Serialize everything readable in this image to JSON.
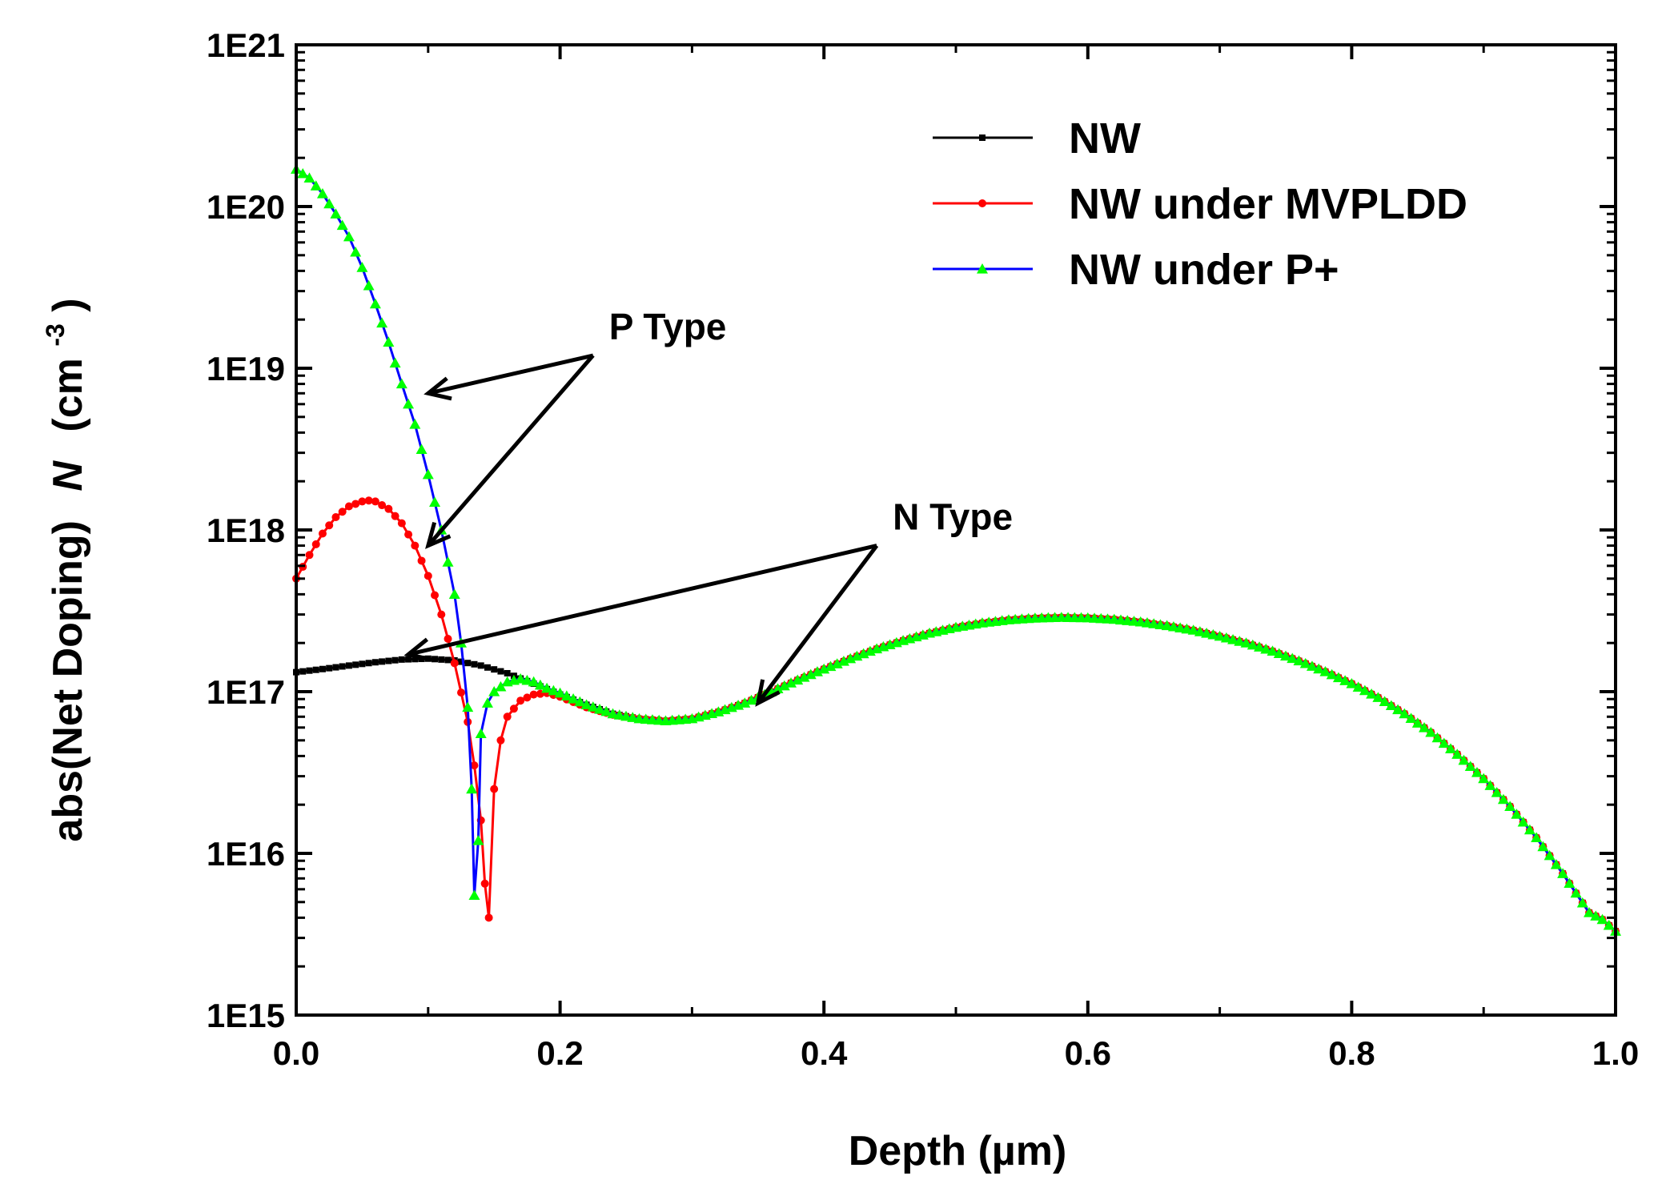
{
  "chart_data": {
    "type": "line",
    "title": "",
    "xlabel": "Depth (µm)",
    "ylabel": {
      "prefix": "abs(Net Doping)",
      "symbol": "N",
      "unit_open": "(cm",
      "unit_sup": "-3",
      "unit_close": ")"
    },
    "xlim": [
      0.0,
      1.0
    ],
    "ylim": [
      1000000000000000.0,
      1e+21
    ],
    "yscale": "log",
    "grid": false,
    "legend_position": "top-right",
    "xticks": [
      "0.0",
      "0.2",
      "0.4",
      "0.6",
      "0.8",
      "1.0"
    ],
    "yticks": [
      "1E15",
      "1E16",
      "1E17",
      "1E18",
      "1E19",
      "1E20",
      "1E21"
    ],
    "series": [
      {
        "name": "NW",
        "color": "#000000",
        "marker": "square",
        "x": [
          0.0,
          0.02,
          0.04,
          0.06,
          0.08,
          0.1,
          0.12,
          0.14,
          0.16,
          0.18,
          0.2,
          0.22,
          0.24,
          0.26,
          0.28,
          0.3,
          0.32,
          0.34,
          0.36,
          0.38,
          0.4,
          0.42,
          0.44,
          0.46,
          0.48,
          0.5,
          0.52,
          0.54,
          0.56,
          0.58,
          0.6,
          0.62,
          0.64,
          0.66,
          0.68,
          0.7,
          0.72,
          0.74,
          0.76,
          0.78,
          0.8,
          0.82,
          0.84,
          0.86,
          0.88,
          0.9,
          0.92,
          0.94,
          0.96,
          0.98,
          0.99,
          1.0
        ],
        "y": [
          1.32e+17,
          1.38e+17,
          1.45e+17,
          1.52e+17,
          1.58e+17,
          1.6e+17,
          1.56e+17,
          1.45e+17,
          1.3e+17,
          1.12e+17,
          9.6e+16,
          8.3e+16,
          7.3e+16,
          6.8e+16,
          6.6e+16,
          6.8e+16,
          7.5e+16,
          8.5e+16,
          1e+17,
          1.18e+17,
          1.38e+17,
          1.6e+17,
          1.84e+17,
          2.07e+17,
          2.3e+17,
          2.5e+17,
          2.66e+17,
          2.78e+17,
          2.85e+17,
          2.88e+17,
          2.86e+17,
          2.8e+17,
          2.7e+17,
          2.56e+17,
          2.4e+17,
          2.2e+17,
          2e+17,
          1.78e+17,
          1.55e+17,
          1.33e+17,
          1.12e+17,
          9.2e+16,
          7.3e+16,
          5.6e+16,
          4.1e+16,
          2.9e+16,
          1.95e+16,
          1.25e+16,
          7500000000000000.0,
          4300000000000000.0,
          3900000000000000.0,
          3300000000000000.0
        ]
      },
      {
        "name": "NW under MVPLDD",
        "color": "#ff0000",
        "marker": "circle",
        "x": [
          0.0,
          0.01,
          0.02,
          0.03,
          0.04,
          0.05,
          0.055,
          0.06,
          0.07,
          0.08,
          0.09,
          0.1,
          0.11,
          0.12,
          0.13,
          0.135,
          0.14,
          0.143,
          0.146,
          0.15,
          0.155,
          0.16,
          0.17,
          0.18,
          0.19,
          0.2,
          0.22,
          0.24,
          0.26,
          0.28,
          0.3,
          0.32,
          0.34,
          0.36,
          0.38,
          0.4,
          0.42,
          0.44,
          0.46,
          0.48,
          0.5,
          0.52,
          0.54,
          0.56,
          0.58,
          0.6,
          0.62,
          0.64,
          0.66,
          0.68,
          0.7,
          0.72,
          0.74,
          0.76,
          0.78,
          0.8,
          0.82,
          0.84,
          0.86,
          0.88,
          0.9,
          0.92,
          0.94,
          0.96,
          0.98,
          0.99,
          1.0
        ],
        "y": [
          5e+17,
          7e+17,
          9.5e+17,
          1.2e+18,
          1.4e+18,
          1.5e+18,
          1.52e+18,
          1.5e+18,
          1.35e+18,
          1.1e+18,
          8e+17,
          5.2e+17,
          3e+17,
          1.5e+17,
          6.5e+16,
          3.5e+16,
          1.6e+16,
          6500000000000000.0,
          4000000000000000.0,
          2.5e+16,
          5e+16,
          7e+16,
          8.8e+16,
          9.6e+16,
          9.8e+16,
          9.3e+16,
          8e+16,
          7.2e+16,
          6.8e+16,
          6.6e+16,
          6.8e+16,
          7.5e+16,
          8.5e+16,
          1e+17,
          1.18e+17,
          1.38e+17,
          1.6e+17,
          1.84e+17,
          2.07e+17,
          2.3e+17,
          2.5e+17,
          2.66e+17,
          2.78e+17,
          2.85e+17,
          2.88e+17,
          2.86e+17,
          2.8e+17,
          2.7e+17,
          2.56e+17,
          2.4e+17,
          2.2e+17,
          2e+17,
          1.78e+17,
          1.55e+17,
          1.33e+17,
          1.12e+17,
          9.2e+16,
          7.3e+16,
          5.6e+16,
          4.1e+16,
          2.9e+16,
          1.95e+16,
          1.25e+16,
          7500000000000000.0,
          4300000000000000.0,
          3900000000000000.0,
          3300000000000000.0
        ]
      },
      {
        "name": "NW under P+",
        "color": "#00ff00",
        "line_color": "#0000ff",
        "marker": "triangle",
        "x": [
          0.0,
          0.01,
          0.02,
          0.03,
          0.04,
          0.05,
          0.06,
          0.07,
          0.08,
          0.09,
          0.1,
          0.11,
          0.12,
          0.125,
          0.13,
          0.133,
          0.135,
          0.138,
          0.14,
          0.145,
          0.15,
          0.16,
          0.17,
          0.18,
          0.19,
          0.2,
          0.22,
          0.24,
          0.26,
          0.28,
          0.3,
          0.32,
          0.34,
          0.36,
          0.38,
          0.4,
          0.42,
          0.44,
          0.46,
          0.48,
          0.5,
          0.52,
          0.54,
          0.56,
          0.58,
          0.6,
          0.62,
          0.64,
          0.66,
          0.68,
          0.7,
          0.72,
          0.74,
          0.76,
          0.78,
          0.8,
          0.82,
          0.84,
          0.86,
          0.88,
          0.9,
          0.92,
          0.94,
          0.96,
          0.98,
          0.99,
          1.0
        ],
        "y": [
          1.7e+20,
          1.5e+20,
          1.2e+20,
          9e+19,
          6.5e+19,
          4.2e+19,
          2.5e+19,
          1.45e+19,
          8e+18,
          4.5e+18,
          2.2e+18,
          1e+18,
          4e+17,
          2e+17,
          8e+16,
          2.5e+16,
          5500000000000000.0,
          1.2e+16,
          5.5e+16,
          8.5e+16,
          1e+17,
          1.15e+17,
          1.2e+17,
          1.15e+17,
          1.05e+17,
          9.8e+16,
          8.3e+16,
          7.3e+16,
          6.8e+16,
          6.6e+16,
          6.8e+16,
          7.5e+16,
          8.5e+16,
          1e+17,
          1.18e+17,
          1.38e+17,
          1.6e+17,
          1.84e+17,
          2.07e+17,
          2.3e+17,
          2.5e+17,
          2.66e+17,
          2.78e+17,
          2.85e+17,
          2.88e+17,
          2.86e+17,
          2.8e+17,
          2.7e+17,
          2.56e+17,
          2.4e+17,
          2.2e+17,
          2e+17,
          1.78e+17,
          1.55e+17,
          1.33e+17,
          1.12e+17,
          9.2e+16,
          7.3e+16,
          5.6e+16,
          4.1e+16,
          2.9e+16,
          1.95e+16,
          1.25e+16,
          7500000000000000.0,
          4300000000000000.0,
          3900000000000000.0,
          3300000000000000.0
        ]
      }
    ],
    "annotations": [
      {
        "text": "P Type",
        "anchor": [
          0.225,
          1.2e+19
        ],
        "arrows_to": [
          [
            0.1,
            7e+18
          ],
          [
            0.1,
            8e+17
          ]
        ]
      },
      {
        "text": "N Type",
        "anchor": [
          0.44,
          8e+17
        ],
        "arrows_to": [
          [
            0.085,
            1.7e+17
          ],
          [
            0.35,
            8.5e+16
          ]
        ]
      }
    ]
  }
}
